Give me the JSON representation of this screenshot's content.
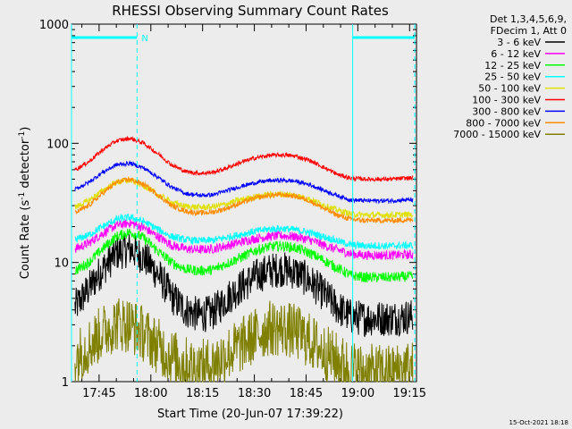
{
  "chart_data": {
    "type": "line",
    "title": "RHESSI Observing Summary Count Rates",
    "xlabel": "Start Time (20-Jun-07 17:39:22)",
    "ylabel_main": "Count Rate (s",
    "ylabel_sup1": "-1",
    "ylabel_mid": " detector",
    "ylabel_sup2": "-1",
    "ylabel_end": ")",
    "y_scale": "log",
    "ylim": [
      1,
      1000
    ],
    "xlim_minutes": [
      17.0,
      117.0
    ],
    "x_tick_minutes": [
      25.0,
      40.0,
      55.0,
      70.0,
      85.0,
      100.0,
      115.0
    ],
    "x_tick_labels": [
      "17:45",
      "18:00",
      "18:15",
      "18:30",
      "18:45",
      "19:00",
      "19:15"
    ],
    "y_tick_values": [
      1,
      10,
      100,
      1000
    ],
    "y_tick_labels": [
      "1",
      "10",
      "100",
      "1000"
    ],
    "legend_header": [
      "Det 1,3,4,5,6,9,",
      "FDecim 1, Att 0"
    ],
    "series": [
      {
        "name": "3 - 6 keV",
        "color": "#000000",
        "x": [
          18,
          22,
          26,
          30,
          34,
          38,
          42,
          46,
          50,
          54,
          58,
          62,
          66,
          70,
          74,
          78,
          82,
          86,
          90,
          94,
          98,
          102,
          106,
          110,
          114,
          116
        ],
        "y": [
          4.2,
          6.0,
          8.8,
          12.0,
          13.0,
          11.0,
          8.0,
          5.2,
          4.0,
          3.6,
          3.8,
          5.0,
          6.2,
          7.5,
          8.5,
          8.8,
          8.3,
          7.0,
          5.5,
          4.2,
          3.5,
          3.4,
          3.4,
          3.4,
          3.5,
          3.5
        ]
      },
      {
        "name": "6 - 12 keV",
        "color": "#ff00ff",
        "x": [
          18,
          22,
          26,
          30,
          34,
          38,
          42,
          46,
          50,
          54,
          58,
          62,
          66,
          70,
          74,
          78,
          82,
          86,
          90,
          94,
          98,
          102,
          106,
          110,
          114,
          116
        ],
        "y": [
          13.0,
          14.5,
          17.5,
          20.5,
          21.5,
          19.5,
          16.5,
          14.0,
          13.0,
          12.8,
          13.0,
          13.8,
          14.8,
          15.8,
          16.5,
          16.8,
          16.4,
          15.5,
          14.0,
          12.8,
          11.8,
          11.5,
          11.5,
          11.5,
          11.6,
          11.6
        ]
      },
      {
        "name": "12 - 25 keV",
        "color": "#00ff00",
        "x": [
          18,
          22,
          26,
          30,
          34,
          38,
          42,
          46,
          50,
          54,
          58,
          62,
          66,
          70,
          74,
          78,
          82,
          86,
          90,
          94,
          98,
          102,
          106,
          110,
          114,
          116
        ],
        "y": [
          8.5,
          10.0,
          13.0,
          16.5,
          18.0,
          16.0,
          12.5,
          10.0,
          8.8,
          8.5,
          8.7,
          9.8,
          11.0,
          12.5,
          13.5,
          13.8,
          13.2,
          12.0,
          10.5,
          9.0,
          7.8,
          7.5,
          7.5,
          7.5,
          7.6,
          7.6
        ]
      },
      {
        "name": "25 - 50 keV",
        "color": "#00ffff",
        "x": [
          18,
          22,
          26,
          30,
          34,
          38,
          42,
          46,
          50,
          54,
          58,
          62,
          66,
          70,
          74,
          78,
          82,
          86,
          90,
          94,
          98,
          102,
          106,
          110,
          114,
          116
        ],
        "y": [
          15.5,
          17.0,
          20.0,
          23.0,
          24.0,
          22.0,
          19.0,
          16.5,
          15.5,
          15.2,
          15.4,
          16.2,
          17.2,
          18.2,
          19.0,
          19.3,
          18.8,
          17.8,
          16.5,
          15.2,
          14.0,
          13.8,
          13.8,
          13.8,
          13.9,
          13.9
        ]
      },
      {
        "name": "50 - 100 keV",
        "color": "#e0e000",
        "x": [
          18,
          22,
          26,
          30,
          34,
          38,
          42,
          46,
          50,
          54,
          58,
          62,
          66,
          70,
          74,
          78,
          82,
          86,
          90,
          94,
          98,
          102,
          106,
          110,
          114,
          116
        ],
        "y": [
          29.0,
          33.0,
          40.0,
          47.0,
          49.0,
          44.0,
          37.0,
          32.0,
          29.5,
          29.0,
          29.3,
          31.0,
          33.5,
          35.5,
          37.0,
          37.5,
          36.5,
          34.0,
          30.5,
          27.5,
          25.5,
          25.0,
          25.0,
          25.0,
          25.2,
          25.2
        ]
      },
      {
        "name": "100 - 300 keV",
        "color": "#ff0000",
        "x": [
          18,
          22,
          26,
          30,
          34,
          38,
          42,
          46,
          50,
          54,
          58,
          62,
          66,
          70,
          74,
          78,
          82,
          86,
          90,
          94,
          98,
          102,
          106,
          110,
          114,
          116
        ],
        "y": [
          60.0,
          70.0,
          88.0,
          105.0,
          110.0,
          100.0,
          82.0,
          66.0,
          58.0,
          56.0,
          57.0,
          62.0,
          69.0,
          75.0,
          79.0,
          80.0,
          78.0,
          72.0,
          63.0,
          55.0,
          51.0,
          50.0,
          50.0,
          50.0,
          51.0,
          51.0
        ]
      },
      {
        "name": "300 - 800 keV",
        "color": "#0000ff",
        "x": [
          18,
          22,
          26,
          30,
          34,
          38,
          42,
          46,
          50,
          54,
          58,
          62,
          66,
          70,
          74,
          78,
          82,
          86,
          90,
          94,
          98,
          102,
          106,
          110,
          114,
          116
        ],
        "y": [
          41.0,
          47.0,
          57.0,
          66.0,
          68.0,
          62.0,
          52.0,
          43.0,
          38.0,
          36.5,
          37.0,
          40.0,
          43.5,
          46.5,
          48.5,
          49.0,
          48.0,
          45.0,
          40.5,
          36.5,
          33.5,
          33.0,
          33.0,
          33.0,
          33.5,
          33.5
        ]
      },
      {
        "name": "800 - 7000 keV",
        "color": "#ff8c00",
        "x": [
          18,
          22,
          26,
          30,
          34,
          38,
          42,
          46,
          50,
          54,
          58,
          62,
          66,
          70,
          74,
          78,
          82,
          86,
          90,
          94,
          98,
          102,
          106,
          110,
          114,
          116
        ],
        "y": [
          26.0,
          30.0,
          38.0,
          47.0,
          50.0,
          45.0,
          37.0,
          30.0,
          27.0,
          26.0,
          26.5,
          28.5,
          31.5,
          34.5,
          36.5,
          37.0,
          36.0,
          33.0,
          28.5,
          25.0,
          23.0,
          22.5,
          22.5,
          22.5,
          22.7,
          22.7
        ]
      },
      {
        "name": "7000 - 15000 keV",
        "color": "#7f7f00",
        "x": [
          18,
          22,
          26,
          30,
          34,
          38,
          42,
          46,
          50,
          54,
          58,
          62,
          66,
          70,
          74,
          78,
          82,
          86,
          90,
          94,
          98,
          102,
          106,
          110,
          114,
          116
        ],
        "y": [
          1.6,
          2.0,
          2.6,
          3.1,
          3.0,
          2.5,
          2.0,
          1.6,
          1.4,
          1.3,
          1.4,
          1.7,
          2.0,
          2.4,
          2.8,
          2.8,
          2.6,
          2.2,
          1.8,
          1.5,
          1.3,
          1.2,
          1.2,
          1.2,
          1.3,
          1.3
        ]
      }
    ],
    "flag_segments": [
      {
        "x0": 17.0,
        "x1": 36.0
      },
      {
        "x0": 98.5,
        "x1": 116.5
      }
    ],
    "flag_label": "N",
    "dashed_x": [
      36.0,
      116.5
    ],
    "solid_x": [
      17.0,
      98.5
    ],
    "flag_color": "#00ffff",
    "grid": false,
    "legend_placement": "top-right, outside plot"
  },
  "footer": {
    "timestamp": "15-Oct-2021 18:18"
  }
}
